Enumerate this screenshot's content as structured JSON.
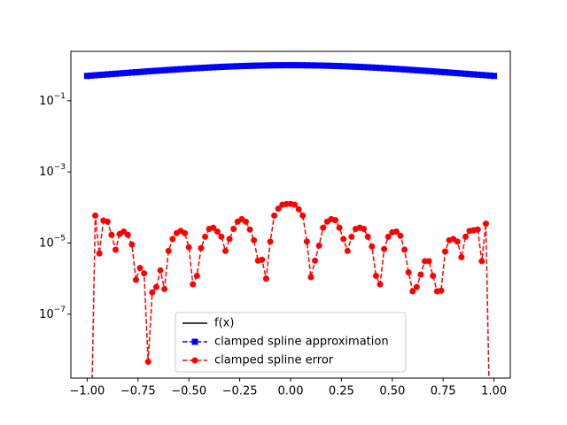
{
  "chart_data": {
    "type": "line",
    "yscale": "log",
    "legend": "lower center",
    "x": [
      -1,
      -0.98,
      -0.96,
      -0.94,
      -0.92,
      -0.9,
      -0.88,
      -0.86,
      -0.84,
      -0.82,
      -0.8,
      -0.78,
      -0.76,
      -0.74,
      -0.72,
      -0.7,
      -0.68,
      -0.66,
      -0.64,
      -0.62,
      -0.6,
      -0.58,
      -0.56,
      -0.54,
      -0.52,
      -0.5,
      -0.48,
      -0.46,
      -0.44,
      -0.42,
      -0.4,
      -0.38,
      -0.36,
      -0.34,
      -0.32,
      -0.3,
      -0.28,
      -0.26,
      -0.24,
      -0.22,
      -0.2,
      -0.18,
      -0.16,
      -0.14,
      -0.12,
      -0.1,
      -0.08,
      -0.06,
      -0.04,
      -0.02,
      0,
      0.02,
      0.04,
      0.06,
      0.08,
      0.1,
      0.12,
      0.14,
      0.16,
      0.18,
      0.2,
      0.22,
      0.24,
      0.26,
      0.28,
      0.3,
      0.32,
      0.34,
      0.36,
      0.38,
      0.4,
      0.42,
      0.44,
      0.46,
      0.48,
      0.5,
      0.52,
      0.54,
      0.56,
      0.58,
      0.6,
      0.62,
      0.64,
      0.66,
      0.68,
      0.7,
      0.72,
      0.74,
      0.76,
      0.78,
      0.8,
      0.82,
      0.84,
      0.86,
      0.88,
      0.9,
      0.92,
      0.94,
      0.96,
      0.98,
      1
    ],
    "series": [
      {
        "name": "f(x)",
        "color": "#000000",
        "dash": false,
        "marker": "none",
        "values": [
          0.5,
          0.5101,
          0.5204,
          0.5309,
          0.5416,
          0.5525,
          0.5636,
          0.5749,
          0.5864,
          0.598,
          0.6098,
          0.6218,
          0.634,
          0.6462,
          0.6586,
          0.6711,
          0.6838,
          0.6966,
          0.7094,
          0.7223,
          0.7353,
          0.7483,
          0.7613,
          0.7742,
          0.7872,
          0.8,
          0.8127,
          0.8253,
          0.8378,
          0.85,
          0.8621,
          0.8738,
          0.8853,
          0.8964,
          0.9071,
          0.9174,
          0.9273,
          0.9367,
          0.9456,
          0.9538,
          0.9615,
          0.9686,
          0.975,
          0.9808,
          0.9858,
          0.9901,
          0.9936,
          0.9964,
          0.9984,
          0.9996,
          1,
          0.9996,
          0.9984,
          0.9964,
          0.9936,
          0.9901,
          0.9858,
          0.9808,
          0.975,
          0.9686,
          0.9615,
          0.9538,
          0.9456,
          0.9367,
          0.9273,
          0.9174,
          0.9071,
          0.8964,
          0.8853,
          0.8738,
          0.8621,
          0.85,
          0.8378,
          0.8253,
          0.8127,
          0.8,
          0.7872,
          0.7742,
          0.7613,
          0.7483,
          0.7353,
          0.7223,
          0.7094,
          0.6966,
          0.6838,
          0.6711,
          0.6586,
          0.6462,
          0.634,
          0.6218,
          0.6098,
          0.598,
          0.5864,
          0.5749,
          0.5636,
          0.5525,
          0.5416,
          0.5309,
          0.5204,
          0.5101,
          0.5
        ]
      },
      {
        "name": "clamped spline approximation",
        "color": "#0000ff",
        "dash": true,
        "marker": "square",
        "values": [
          0.5,
          0.5101,
          0.5204,
          0.5309,
          0.5416,
          0.5525,
          0.5636,
          0.5749,
          0.5864,
          0.598,
          0.6098,
          0.6218,
          0.634,
          0.6462,
          0.6586,
          0.6711,
          0.6838,
          0.6966,
          0.7094,
          0.7223,
          0.7353,
          0.7483,
          0.7613,
          0.7742,
          0.7872,
          0.8,
          0.8127,
          0.8253,
          0.8378,
          0.85,
          0.8621,
          0.8738,
          0.8853,
          0.8964,
          0.9071,
          0.9174,
          0.9273,
          0.9367,
          0.9456,
          0.9538,
          0.9615,
          0.9686,
          0.975,
          0.9808,
          0.9858,
          0.9901,
          0.9936,
          0.9964,
          0.9984,
          0.9996,
          1,
          0.9996,
          0.9984,
          0.9964,
          0.9936,
          0.9901,
          0.9858,
          0.9808,
          0.975,
          0.9686,
          0.9615,
          0.9538,
          0.9456,
          0.9367,
          0.9273,
          0.9174,
          0.9071,
          0.8964,
          0.8853,
          0.8738,
          0.8621,
          0.85,
          0.8378,
          0.8253,
          0.8127,
          0.8,
          0.7872,
          0.7742,
          0.7613,
          0.7483,
          0.7353,
          0.7223,
          0.7094,
          0.6966,
          0.6838,
          0.6711,
          0.6586,
          0.6462,
          0.634,
          0.6218,
          0.6098,
          0.598,
          0.5864,
          0.5749,
          0.5636,
          0.5525,
          0.5416,
          0.5309,
          0.5204,
          0.5101,
          0.5
        ]
      },
      {
        "name": "clamped spline error",
        "color": "#ff0000",
        "dash": true,
        "marker": "circle",
        "values": [
          0,
          0,
          5.9e-05,
          5.1e-06,
          4.3e-05,
          4e-05,
          1.7e-05,
          6.5e-06,
          1.8e-05,
          2.1e-05,
          1.7e-05,
          9.1e-06,
          9.2e-07,
          2e-06,
          1.4e-06,
          4.6e-09,
          4.1e-07,
          5.8e-07,
          1.7e-06,
          5.1e-07,
          6e-06,
          1.3e-05,
          1.9e-05,
          2.2e-05,
          1.9e-05,
          7.6e-06,
          6.9e-07,
          1.2e-06,
          7.2e-06,
          1.5e-05,
          2.5e-05,
          2.7e-05,
          2.1e-05,
          1.5e-05,
          6e-06,
          1.3e-05,
          2.5e-05,
          4e-05,
          4.7e-05,
          4e-05,
          2.4e-05,
          1.2e-05,
          3.2e-06,
          3.4e-06,
          1e-06,
          1.1e-05,
          5.9e-05,
          9.3e-05,
          0.00012,
          0.000125,
          0.000126,
          0.00012,
          8.9e-05,
          5.9e-05,
          1.1e-05,
          1.1e-06,
          3.2e-06,
          8.5e-06,
          2.7e-05,
          4e-05,
          4.7e-05,
          4.4e-05,
          2.7e-05,
          1.3e-05,
          6e-06,
          1.5e-05,
          2.5e-05,
          2.7e-05,
          2.5e-05,
          1.5e-05,
          8e-06,
          1.2e-06,
          6.9e-07,
          6.8e-06,
          1.5e-05,
          2e-05,
          2.1e-05,
          1.6e-05,
          6.5e-06,
          1.5e-06,
          4.4e-07,
          5.8e-07,
          1.3e-06,
          3.1e-06,
          3.1e-06,
          1.2e-06,
          4.4e-07,
          4.6e-07,
          5.8e-06,
          1.2e-05,
          1.3e-05,
          1.1e-05,
          4e-06,
          1.5e-05,
          2.2e-05,
          2.3e-05,
          2.4e-05,
          3.1e-06,
          3.5e-05,
          0,
          0
        ]
      }
    ],
    "xlim": [
      -1.08,
      1.08
    ],
    "xticks": [
      {
        "value": -1,
        "label": "−1.00"
      },
      {
        "value": -0.75,
        "label": "−0.75"
      },
      {
        "value": -0.5,
        "label": "−0.50"
      },
      {
        "value": -0.25,
        "label": "−0.25"
      },
      {
        "value": 0,
        "label": "0.00"
      },
      {
        "value": 0.25,
        "label": "0.25"
      },
      {
        "value": 0.5,
        "label": "0.50"
      },
      {
        "value": 0.75,
        "label": "0.75"
      },
      {
        "value": 1,
        "label": "1.00"
      }
    ],
    "ylim": [
      1.6e-09,
      2.45
    ],
    "yticks": [
      {
        "value": 1e-07,
        "label": "10−7"
      },
      {
        "value": 1e-05,
        "label": "10−5"
      },
      {
        "value": 0.001,
        "label": "10−3"
      },
      {
        "value": 0.1,
        "label": "10−1"
      }
    ]
  }
}
